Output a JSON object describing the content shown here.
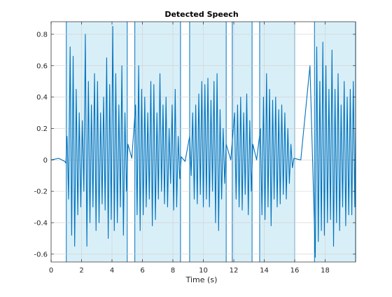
{
  "chart_data": {
    "type": "line",
    "title": "Detected Speech",
    "xlabel": "Time (s)",
    "ylabel": "",
    "xlim": [
      0,
      20
    ],
    "ylim": [
      -0.65,
      0.88
    ],
    "xticks": [
      0,
      2,
      4,
      6,
      8,
      10,
      12,
      14,
      16,
      18
    ],
    "yticks": [
      -0.6,
      -0.4,
      -0.2,
      0,
      0.2,
      0.4,
      0.6,
      0.8
    ],
    "grid": true,
    "legend": "none",
    "series": [
      {
        "color": "#0072BD",
        "x": [
          0.0,
          0.5,
          0.9,
          0.97,
          1.05,
          1.15,
          1.25,
          1.35,
          1.45,
          1.55,
          1.65,
          1.75,
          1.85,
          1.95,
          2.05,
          2.15,
          2.25,
          2.35,
          2.45,
          2.55,
          2.65,
          2.75,
          2.85,
          2.95,
          3.05,
          3.15,
          3.25,
          3.35,
          3.45,
          3.55,
          3.65,
          3.75,
          3.85,
          3.95,
          4.05,
          4.15,
          4.25,
          4.35,
          4.45,
          4.55,
          4.65,
          4.75,
          4.85,
          4.95,
          5.05,
          5.3,
          5.55,
          5.65,
          5.75,
          5.85,
          5.95,
          6.05,
          6.15,
          6.25,
          6.35,
          6.45,
          6.55,
          6.65,
          6.75,
          6.85,
          6.95,
          7.05,
          7.15,
          7.25,
          7.35,
          7.45,
          7.55,
          7.65,
          7.75,
          7.85,
          7.95,
          8.05,
          8.15,
          8.25,
          8.35,
          8.45,
          8.55,
          8.8,
          9.1,
          9.2,
          9.3,
          9.4,
          9.5,
          9.6,
          9.7,
          9.8,
          9.9,
          10.0,
          10.1,
          10.2,
          10.3,
          10.4,
          10.5,
          10.6,
          10.7,
          10.8,
          10.9,
          11.0,
          11.1,
          11.2,
          11.3,
          11.4,
          11.5,
          11.8,
          12.05,
          12.15,
          12.25,
          12.35,
          12.45,
          12.55,
          12.65,
          12.75,
          12.85,
          12.95,
          13.05,
          13.15,
          13.25,
          13.5,
          13.75,
          13.85,
          13.95,
          14.05,
          14.15,
          14.25,
          14.35,
          14.45,
          14.55,
          14.65,
          14.75,
          14.85,
          14.95,
          15.05,
          15.15,
          15.25,
          15.35,
          15.45,
          15.55,
          15.65,
          15.75,
          15.85,
          15.95,
          16.4,
          17.0,
          17.35,
          17.45,
          17.55,
          17.65,
          17.75,
          17.85,
          17.95,
          18.05,
          18.15,
          18.25,
          18.35,
          18.45,
          18.55,
          18.65,
          18.75,
          18.85,
          18.95,
          19.05,
          19.15,
          19.25,
          19.35,
          19.45,
          19.55,
          19.65,
          19.75,
          19.85,
          19.95,
          20.0
        ],
        "y": [
          0.0,
          0.01,
          -0.01,
          -0.02,
          0.15,
          -0.25,
          0.72,
          -0.48,
          0.66,
          -0.55,
          0.45,
          -0.35,
          0.3,
          -0.3,
          0.25,
          -0.2,
          0.8,
          -0.55,
          0.5,
          -0.4,
          0.35,
          -0.3,
          0.55,
          -0.45,
          0.5,
          -0.4,
          0.3,
          -0.28,
          0.4,
          -0.32,
          0.65,
          -0.5,
          0.48,
          -0.38,
          0.85,
          -0.45,
          0.55,
          -0.4,
          0.35,
          -0.3,
          0.6,
          -0.48,
          0.3,
          -0.2,
          0.1,
          0.01,
          0.35,
          -0.35,
          0.6,
          -0.45,
          0.45,
          -0.35,
          0.4,
          -0.3,
          0.3,
          -0.25,
          0.5,
          -0.42,
          0.48,
          -0.38,
          0.3,
          -0.25,
          0.55,
          -0.2,
          0.35,
          -0.28,
          0.4,
          -0.3,
          0.2,
          -0.15,
          0.35,
          -0.32,
          0.45,
          -0.3,
          0.15,
          -0.12,
          0.02,
          -0.01,
          0.15,
          -0.1,
          0.3,
          -0.25,
          0.35,
          -0.28,
          0.42,
          -0.22,
          0.5,
          -0.3,
          0.48,
          -0.25,
          0.52,
          -0.3,
          0.38,
          -0.2,
          0.5,
          -0.4,
          0.55,
          -0.45,
          0.32,
          -0.25,
          0.2,
          -0.15,
          0.1,
          0.0,
          0.3,
          -0.25,
          0.35,
          -0.3,
          0.4,
          -0.32,
          0.3,
          -0.22,
          0.42,
          -0.35,
          0.25,
          -0.2,
          0.1,
          0.0,
          0.2,
          -0.35,
          0.4,
          -0.38,
          0.55,
          -0.3,
          0.45,
          -0.42,
          0.38,
          -0.25,
          0.4,
          -0.3,
          0.32,
          -0.28,
          0.35,
          -0.22,
          0.3,
          -0.25,
          0.2,
          -0.15,
          0.1,
          -0.05,
          0.01,
          0.0,
          0.6,
          -0.62,
          0.72,
          -0.52,
          0.5,
          -0.45,
          0.75,
          -0.48,
          0.6,
          -0.4,
          0.45,
          -0.38,
          0.7,
          -0.55,
          0.45,
          -0.4,
          0.55,
          -0.45,
          0.35,
          -0.3,
          0.5,
          -0.42,
          0.4,
          -0.35,
          0.45,
          -0.35,
          0.5,
          -0.3,
          0.2
        ]
      }
    ],
    "regions": [
      {
        "start": 1.0,
        "end": 5.0
      },
      {
        "start": 5.5,
        "end": 8.5
      },
      {
        "start": 9.1,
        "end": 11.5
      },
      {
        "start": 11.9,
        "end": 13.2
      },
      {
        "start": 13.7,
        "end": 16.0
      },
      {
        "start": 17.3,
        "end": 20.0
      }
    ],
    "region_color": "#D9EFF8"
  }
}
